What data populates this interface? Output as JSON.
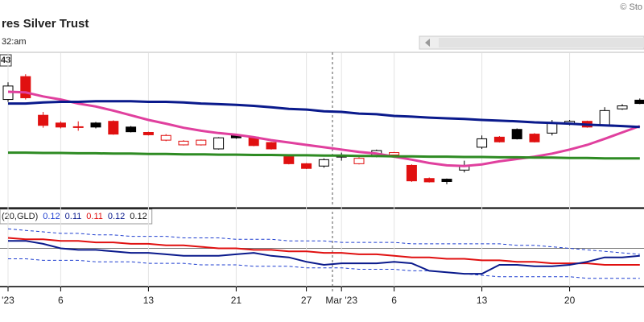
{
  "chart_data": [
    {
      "type": "candlestick",
      "title": "res Silver Trust",
      "subtitle": "32:am",
      "annotations": [
        "© Sto",
        "43"
      ],
      "ylim": [
        19.0,
        23.5
      ],
      "open": [
        22.17,
        22.85,
        21.7,
        21.47,
        21.36,
        21.47,
        21.52,
        21.35,
        21.19,
        20.96,
        20.82,
        20.82,
        20.7,
        21.1,
        21.05,
        20.89,
        20.47,
        20.26,
        20.19,
        20.48,
        20.26,
        20.47,
        20.52,
        20.21,
        19.82,
        19.8,
        20.07,
        20.75,
        21.05,
        21.28,
        21.14,
        21.17,
        21.45,
        21.52,
        21.4,
        21.89,
        22.15
      ],
      "high": [
        22.68,
        22.92,
        21.8,
        21.52,
        21.52,
        21.5,
        21.55,
        21.38,
        21.21,
        21.14,
        20.96,
        20.98,
        21.05,
        21.12,
        21.07,
        20.91,
        20.5,
        20.28,
        20.42,
        20.59,
        20.45,
        20.68,
        20.61,
        20.24,
        19.85,
        19.82,
        20.35,
        21.1,
        21.08,
        21.31,
        21.17,
        21.56,
        21.56,
        21.54,
        21.94,
        22.03,
        22.2
      ],
      "low": [
        22.1,
        22.17,
        21.33,
        21.31,
        21.24,
        21.31,
        21.12,
        21.19,
        21.1,
        20.93,
        20.8,
        20.8,
        20.68,
        21.0,
        20.78,
        20.68,
        20.24,
        20.1,
        20.14,
        20.35,
        20.24,
        20.45,
        20.5,
        19.72,
        19.7,
        19.65,
        20.0,
        20.7,
        20.89,
        20.98,
        20.89,
        21.1,
        21.4,
        21.33,
        21.38,
        21.86,
        22.03
      ],
      "close": [
        22.57,
        22.22,
        21.4,
        21.35,
        21.35,
        21.35,
        21.14,
        21.21,
        21.12,
        21.1,
        20.93,
        20.96,
        21.03,
        21.03,
        20.8,
        20.7,
        20.26,
        20.12,
        20.38,
        20.47,
        20.42,
        20.65,
        20.59,
        19.75,
        19.72,
        19.73,
        20.21,
        21.0,
        20.91,
        21.0,
        20.91,
        21.47,
        21.52,
        21.35,
        21.84,
        21.98,
        22.05
      ],
      "colors": [
        "#000000",
        "#e01010",
        "#e01010",
        "#e01010",
        "#e01010",
        "#000000",
        "#e01010",
        "#000000",
        "#e01010",
        "#e01010",
        "#e01010",
        "#e01010",
        "#000000",
        "#000000",
        "#e01010",
        "#e01010",
        "#e01010",
        "#e01010",
        "#000000",
        "#000000",
        "#e01010",
        "#000000",
        "#e01010",
        "#e01010",
        "#e01010",
        "#000000",
        "#000000",
        "#000000",
        "#e01010",
        "#000000",
        "#e01010",
        "#000000",
        "#000000",
        "#e01010",
        "#000000",
        "#000000",
        "#000000"
      ],
      "series": [
        {
          "color": "#e0409e",
          "values": [
            22.4,
            22.38,
            22.26,
            22.17,
            22.05,
            21.96,
            21.84,
            21.7,
            21.56,
            21.45,
            21.33,
            21.24,
            21.17,
            21.12,
            21.05,
            20.96,
            20.89,
            20.82,
            20.75,
            20.68,
            20.61,
            20.56,
            20.47,
            20.38,
            20.28,
            20.21,
            20.19,
            20.24,
            20.33,
            20.4,
            20.47,
            20.56,
            20.68,
            20.82,
            21.0,
            21.19,
            21.38
          ]
        },
        {
          "color": "#0a1a8c",
          "values": [
            22.05,
            22.05,
            22.08,
            22.1,
            22.1,
            22.12,
            22.12,
            22.12,
            22.1,
            22.1,
            22.08,
            22.05,
            22.03,
            22.01,
            21.98,
            21.94,
            21.89,
            21.87,
            21.82,
            21.8,
            21.75,
            21.73,
            21.68,
            21.66,
            21.63,
            21.61,
            21.59,
            21.56,
            21.54,
            21.52,
            21.49,
            21.47,
            21.45,
            21.42,
            21.4,
            21.38,
            21.35
          ]
        },
        {
          "color": "#2e8b23",
          "values": [
            20.59,
            20.59,
            20.58,
            20.58,
            20.57,
            20.57,
            20.56,
            20.56,
            20.55,
            20.55,
            20.54,
            20.54,
            20.53,
            20.53,
            20.52,
            20.52,
            20.51,
            20.51,
            20.5,
            20.5,
            20.49,
            20.49,
            20.48,
            20.48,
            20.47,
            20.47,
            20.46,
            20.46,
            20.45,
            20.45,
            20.44,
            20.44,
            20.43,
            20.43,
            20.42,
            20.42,
            20.42
          ]
        }
      ]
    },
    {
      "type": "line",
      "legend_label": "(20,GLD)",
      "legend_values": [
        0.12,
        0.11,
        0.11,
        0.12,
        0.12
      ],
      "legend_colors": [
        "#1f3fd0",
        "#0a1a8c",
        "#e01010",
        "#0a1a8c",
        "#111111"
      ],
      "ylim": [
        0.09,
        0.14
      ],
      "ref_line": 0.115,
      "categories": [
        "'23",
        null,
        null,
        "6",
        null,
        null,
        null,
        null,
        "13",
        null,
        null,
        null,
        null,
        "21",
        null,
        null,
        null,
        "27",
        null,
        "Mar '23",
        null,
        null,
        "6",
        null,
        null,
        null,
        null,
        "13",
        null,
        null,
        null,
        null,
        "20",
        null,
        null,
        null,
        null
      ],
      "series": [
        {
          "color": "#1f3fd0",
          "dashed": true,
          "values": [
            0.128,
            0.127,
            0.126,
            0.125,
            0.125,
            0.124,
            0.124,
            0.123,
            0.123,
            0.123,
            0.122,
            0.122,
            0.122,
            0.121,
            0.121,
            0.121,
            0.12,
            0.12,
            0.12,
            0.119,
            0.119,
            0.119,
            0.119,
            0.118,
            0.118,
            0.118,
            0.118,
            0.118,
            0.118,
            0.117,
            0.117,
            0.116,
            0.115,
            0.114,
            0.113,
            0.112,
            0.111
          ]
        },
        {
          "color": "#1f3fd0",
          "dashed": true,
          "values": [
            0.108,
            0.108,
            0.107,
            0.107,
            0.107,
            0.106,
            0.106,
            0.106,
            0.105,
            0.105,
            0.105,
            0.104,
            0.104,
            0.104,
            0.103,
            0.103,
            0.103,
            0.102,
            0.102,
            0.102,
            0.101,
            0.101,
            0.101,
            0.1,
            0.1,
            0.099,
            0.098,
            0.097,
            0.096,
            0.096,
            0.096,
            0.096,
            0.096,
            0.095,
            0.095,
            0.095,
            0.095
          ]
        },
        {
          "color": "#e01010",
          "dashed": false,
          "values": [
            0.122,
            0.121,
            0.121,
            0.12,
            0.12,
            0.119,
            0.119,
            0.118,
            0.118,
            0.117,
            0.117,
            0.116,
            0.115,
            0.115,
            0.114,
            0.114,
            0.113,
            0.113,
            0.112,
            0.112,
            0.111,
            0.111,
            0.11,
            0.109,
            0.109,
            0.108,
            0.108,
            0.107,
            0.107,
            0.106,
            0.106,
            0.105,
            0.105,
            0.105,
            0.104,
            0.104,
            0.104
          ]
        },
        {
          "color": "#0a1a8c",
          "dashed": false,
          "values": [
            0.12,
            0.12,
            0.118,
            0.115,
            0.114,
            0.114,
            0.113,
            0.112,
            0.112,
            0.111,
            0.11,
            0.11,
            0.11,
            0.111,
            0.112,
            0.11,
            0.109,
            0.106,
            0.104,
            0.105,
            0.105,
            0.105,
            0.106,
            0.105,
            0.1,
            0.099,
            0.098,
            0.098,
            0.104,
            0.104,
            0.103,
            0.103,
            0.104,
            0.106,
            0.109,
            0.109,
            0.11
          ]
        }
      ]
    }
  ]
}
